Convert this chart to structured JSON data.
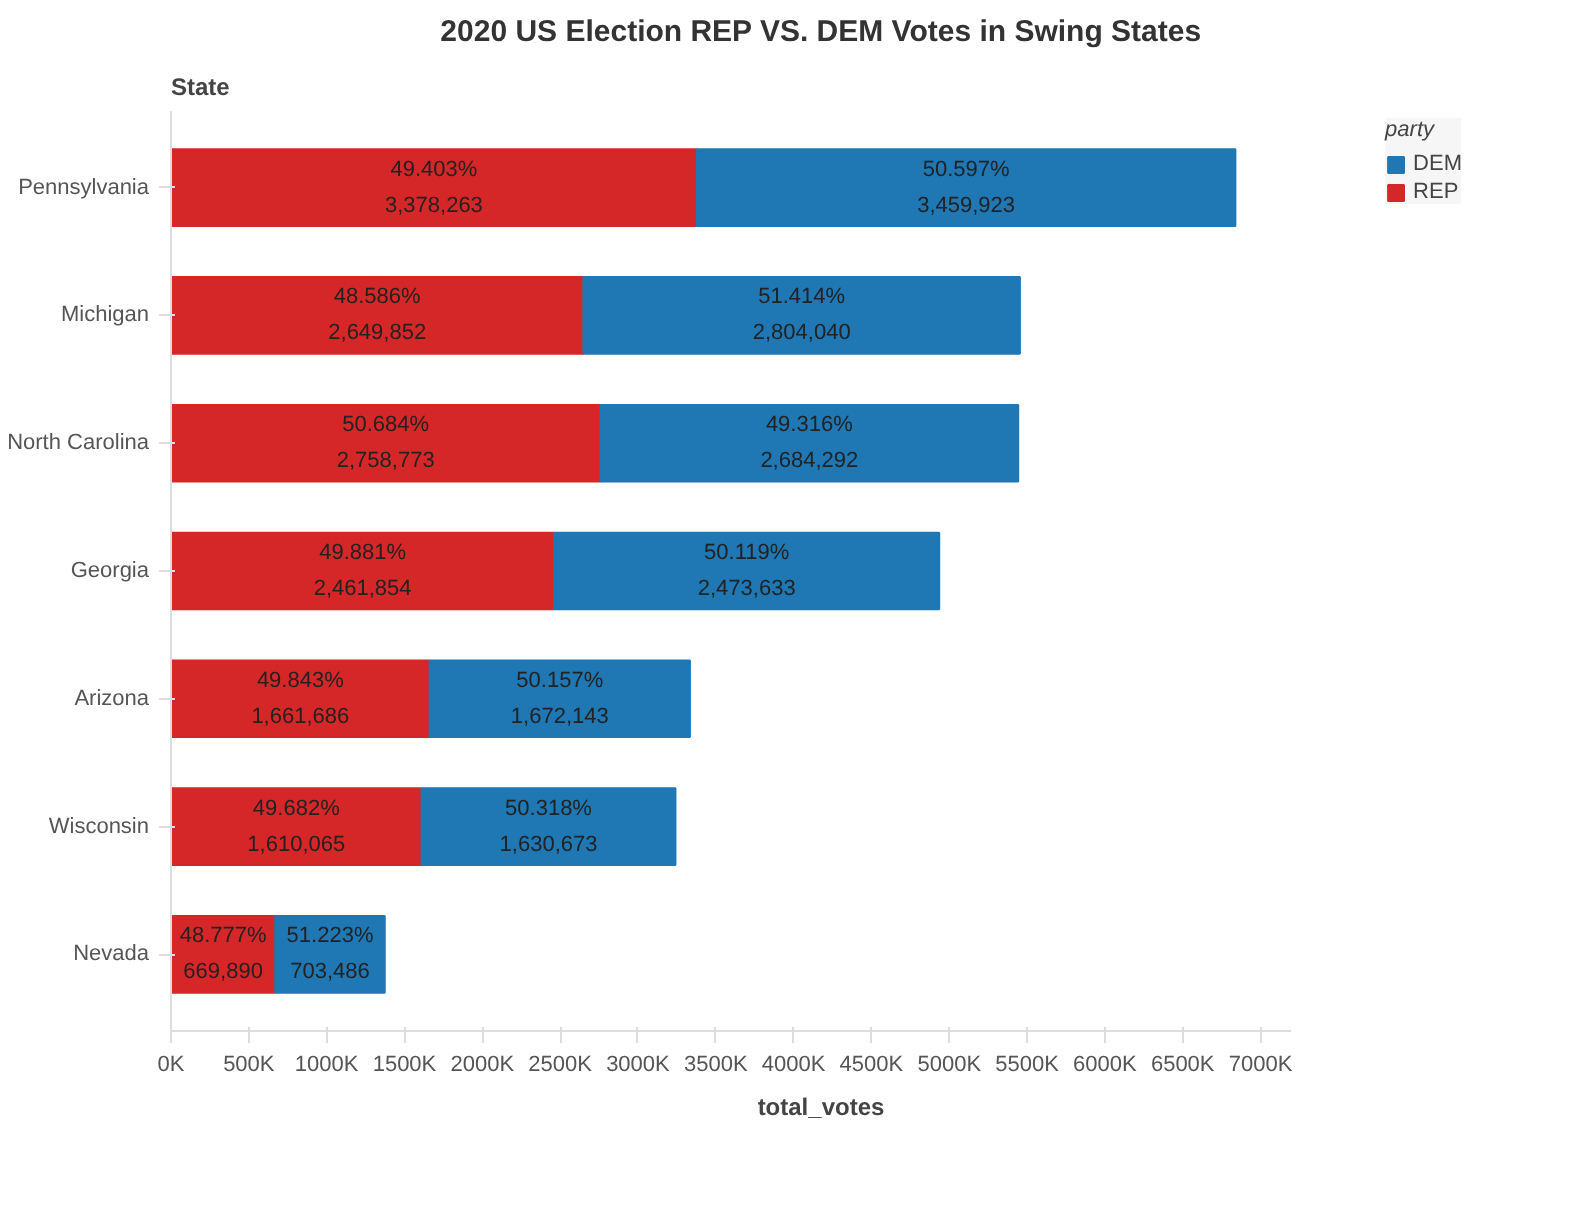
{
  "chart_data": {
    "type": "bar",
    "orientation": "horizontal",
    "stacked": true,
    "title": "2020 US Election REP VS. DEM Votes in Swing States",
    "xlabel": "total_votes",
    "ylabel": "State",
    "legend_title": "party",
    "legend": "top right",
    "grid": false,
    "categories": [
      "Pennsylvania",
      "Michigan",
      "North Carolina",
      "Georgia",
      "Arizona",
      "Wisconsin",
      "Nevada"
    ],
    "xlim": [
      0,
      7200000
    ],
    "xticks": [
      {
        "value": 0,
        "label": "0K"
      },
      {
        "value": 500000,
        "label": "500K"
      },
      {
        "value": 1000000,
        "label": "1000K"
      },
      {
        "value": 1500000,
        "label": "1500K"
      },
      {
        "value": 2000000,
        "label": "2000K"
      },
      {
        "value": 2500000,
        "label": "2500K"
      },
      {
        "value": 3000000,
        "label": "3000K"
      },
      {
        "value": 3500000,
        "label": "3500K"
      },
      {
        "value": 4000000,
        "label": "4000K"
      },
      {
        "value": 4500000,
        "label": "4500K"
      },
      {
        "value": 5000000,
        "label": "5000K"
      },
      {
        "value": 5500000,
        "label": "5500K"
      },
      {
        "value": 6000000,
        "label": "6000K"
      },
      {
        "value": 6500000,
        "label": "6500K"
      },
      {
        "value": 7000000,
        "label": "7000K"
      }
    ],
    "series": [
      {
        "name": "REP",
        "color": "#d62728",
        "values": [
          3378263,
          2649852,
          2758773,
          2461854,
          1661686,
          1610065,
          669890
        ],
        "value_labels": [
          "49.403%\n3,378,263",
          "48.586%\n2,649,852",
          "50.684%\n2,758,773",
          "49.881%\n2,461,854",
          "49.843%\n1,661,686",
          "49.682%\n1,610,065",
          "48.777%\n669,890"
        ]
      },
      {
        "name": "DEM",
        "color": "#1f77b4",
        "values": [
          3459923,
          2804040,
          2684292,
          2473633,
          1672143,
          1630673,
          703486
        ],
        "value_labels": [
          "50.597%\n3,459,923",
          "51.414%\n2,804,040",
          "49.316%\n2,684,292",
          "50.119%\n2,473,633",
          "50.157%\n1,672,143",
          "50.318%\n1,630,673",
          "51.223%\n703,486"
        ]
      }
    ]
  }
}
